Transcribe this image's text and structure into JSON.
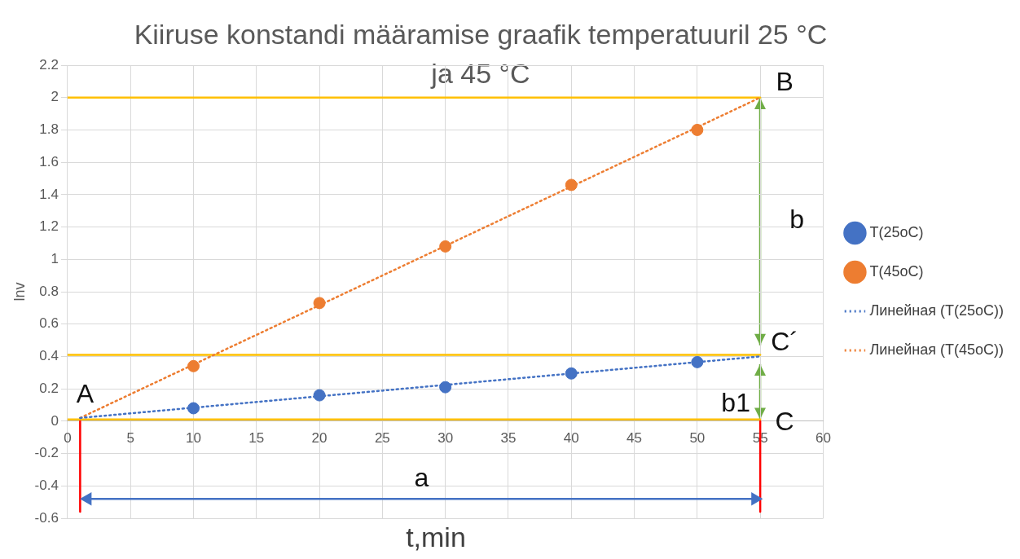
{
  "chart_data": {
    "type": "scatter",
    "title": "Kiiruse konstandi määramise graafik temperatuuril 25 °C ja 45 °C",
    "xlabel": "t,min",
    "ylabel": "lnv",
    "xlim": [
      0,
      60
    ],
    "xticks": [
      0,
      5,
      10,
      15,
      20,
      25,
      30,
      35,
      40,
      45,
      50,
      55,
      60
    ],
    "ylim": [
      -0.6,
      2.2
    ],
    "yticks": [
      -0.6,
      -0.4,
      -0.2,
      0,
      0.2,
      0.4,
      0.6,
      0.8,
      1,
      1.2,
      1.4,
      1.6,
      1.8,
      2,
      2.2
    ],
    "grid": true,
    "legend": "right",
    "series": [
      {
        "name": "T(25oC)",
        "type": "scatter",
        "marker": "circle",
        "color": "#4472c4",
        "x": [
          10,
          20,
          30,
          40,
          50
        ],
        "values": [
          0.08,
          0.16,
          0.21,
          0.295,
          0.365
        ]
      },
      {
        "name": "T(45oC)",
        "type": "scatter",
        "marker": "circle",
        "color": "#ed7d31",
        "x": [
          10,
          20,
          30,
          40,
          50
        ],
        "values": [
          0.34,
          0.73,
          1.08,
          1.46,
          1.8
        ]
      },
      {
        "name": "Линейная (T(25oC))",
        "type": "line",
        "marker": "none",
        "line_style": "dotted",
        "color": "#4472c4",
        "x": [
          1,
          55
        ],
        "values": [
          0.02,
          0.4
        ]
      },
      {
        "name": "Линейная (T(45oC))",
        "type": "line",
        "marker": "none",
        "line_style": "dotted",
        "color": "#ed7d31",
        "x": [
          1,
          55
        ],
        "values": [
          0.02,
          2
        ]
      },
      {
        "type": "line",
        "marker": "none",
        "line_style": "solid",
        "color": "#ffc000",
        "x": [
          0,
          55
        ],
        "values": [
          2,
          2
        ]
      },
      {
        "type": "line",
        "marker": "none",
        "line_style": "solid",
        "color": "#ffc000",
        "x": [
          0,
          55
        ],
        "values": [
          0.41,
          0.41
        ]
      },
      {
        "type": "line",
        "marker": "none",
        "line_style": "solid",
        "color": "#ffc000",
        "x": [
          0,
          55
        ],
        "values": [
          0.01,
          0.01
        ]
      },
      {
        "type": "line",
        "marker": "triangle",
        "line_style": "solid",
        "color": "#4472c4",
        "x": [
          1.6,
          54.6
        ],
        "values": [
          -0.48,
          -0.48
        ]
      },
      {
        "type": "line",
        "marker": "none",
        "line_style": "solid",
        "color": "#ff0000",
        "x": [
          1,
          1
        ],
        "values": [
          -0.56,
          0
        ]
      },
      {
        "type": "line",
        "marker": "none",
        "line_style": "solid",
        "color": "#ff0000",
        "x": [
          55,
          55
        ],
        "values": [
          -0.56,
          0
        ]
      }
    ],
    "annotations": [
      "A",
      "B",
      {
        "text": "C´",
        "x": 55,
        "y": 0.41
      },
      "C",
      "a",
      "b",
      "b1"
    ]
  }
}
